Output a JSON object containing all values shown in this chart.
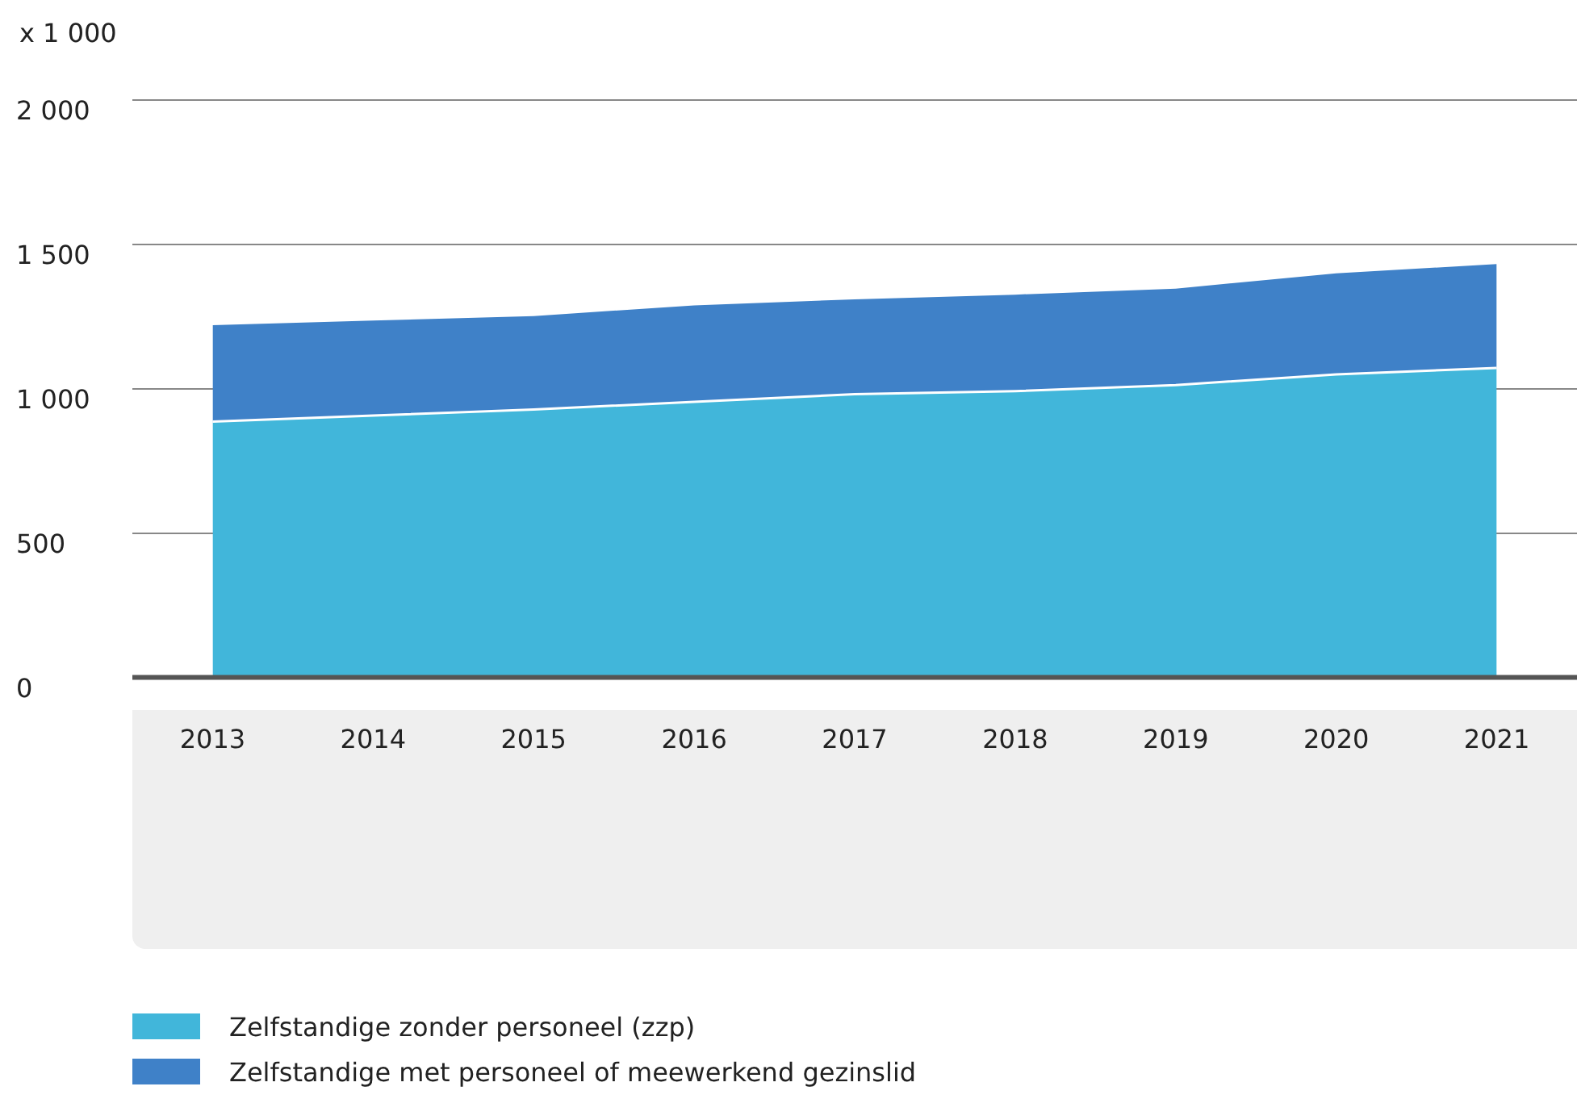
{
  "chart_data": {
    "type": "area",
    "stacked": true,
    "ylabel": "x 1 000",
    "categories": [
      "2013",
      "2014",
      "2015",
      "2016",
      "2017",
      "2018",
      "2019",
      "2020",
      "2021"
    ],
    "series": [
      {
        "name": "Zelfstandige zonder personeel (zzp)",
        "color": "#41b6da",
        "values": [
          886,
          907,
          928,
          955,
          981,
          992,
          1013,
          1050,
          1072
        ]
      },
      {
        "name": "Zelfstandige met personeel of meewerkend gezinslid",
        "color": "#3f81c8",
        "values": [
          334,
          329,
          324,
          334,
          329,
          334,
          334,
          350,
          360
        ]
      }
    ],
    "ylim": [
      0,
      2000
    ],
    "yticks": [
      {
        "value": 0,
        "label": "0"
      },
      {
        "value": 500,
        "label": "500"
      },
      {
        "value": 1000,
        "label": "1 000"
      },
      {
        "value": 1500,
        "label": "1 500"
      },
      {
        "value": 2000,
        "label": "2 000"
      }
    ],
    "grid": "y",
    "legend": "bottom"
  }
}
